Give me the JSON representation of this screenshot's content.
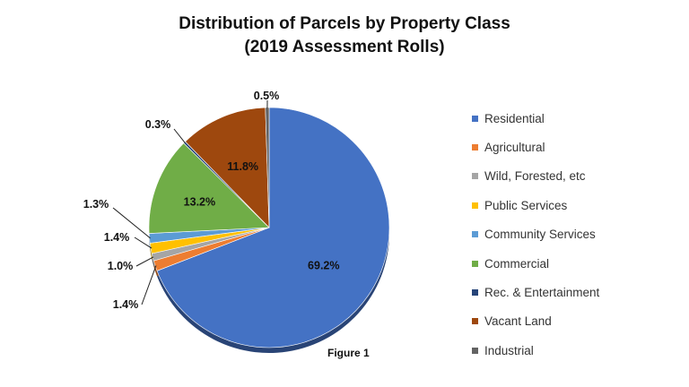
{
  "chart_data": {
    "type": "pie",
    "title": "Distribution of Parcels by Property Class",
    "subtitle": "(2019 Assessment Rolls)",
    "categories": [
      "Residential",
      "Agricultural",
      "Wild, Forested, etc",
      "Public Services",
      "Community Services",
      "Commercial",
      "Rec. & Entertainment",
      "Vacant Land",
      "Industrial"
    ],
    "values": [
      69.2,
      1.4,
      1.0,
      1.4,
      1.3,
      13.2,
      0.3,
      11.8,
      0.5
    ],
    "labels": [
      "69.2%",
      "1.4%",
      "1.0%",
      "1.4%",
      "1.3%",
      "13.2%",
      "0.3%",
      "11.8%",
      "0.5%"
    ],
    "colors": [
      "#4472C4",
      "#ED7D31",
      "#A5A5A5",
      "#FFC000",
      "#5B9BD5",
      "#70AD47",
      "#264478",
      "#9E480E",
      "#636363"
    ],
    "legend_position": "right"
  },
  "caption": "Figure 1"
}
